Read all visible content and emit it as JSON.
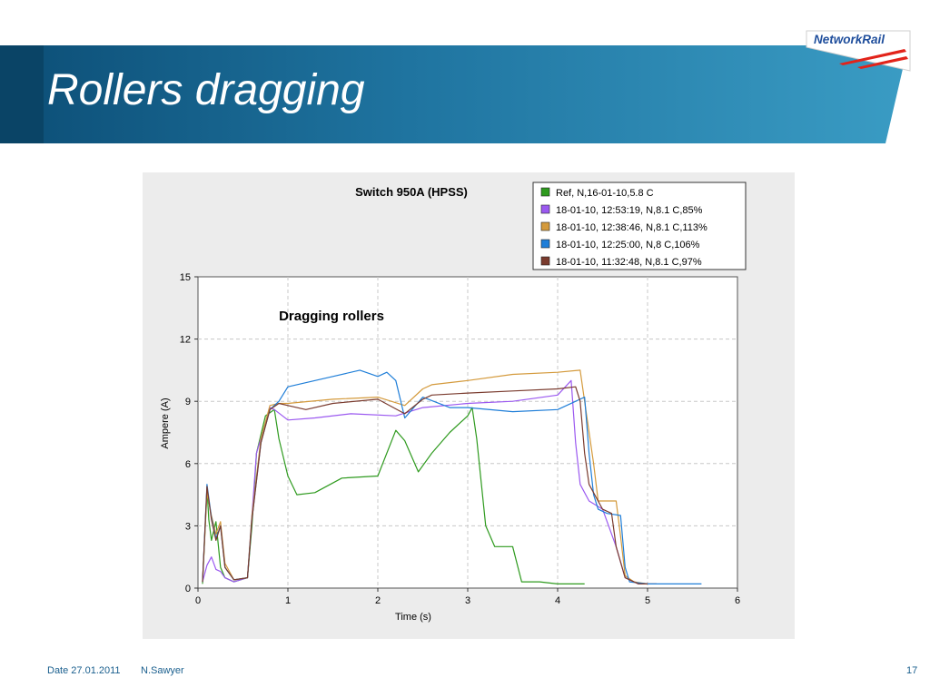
{
  "slide": {
    "title": "Rollers dragging",
    "logo_text": "NetworkRail",
    "footer": {
      "date": "Date 27.01.2011",
      "author": "N.Sawyer",
      "page": "17"
    }
  },
  "colors": {
    "banner_dark": "#0a4466",
    "banner_light": "#3a9cc4",
    "logo_red": "#e2231a",
    "logo_blue": "#1f4e9c"
  },
  "chart_data": {
    "type": "line",
    "title": "Switch 950A (HPSS)",
    "annotation": "Dragging rollers",
    "xlabel": "Time (s)",
    "ylabel": "Ampere (A)",
    "xlim": [
      0,
      6
    ],
    "ylim": [
      0,
      15
    ],
    "xticks": [
      0,
      1,
      2,
      3,
      4,
      5,
      6
    ],
    "yticks": [
      0,
      3,
      6,
      9,
      12,
      15
    ],
    "grid": true,
    "legend_position": "top-right",
    "series": [
      {
        "name": "Ref, N,16-01-10,5.8 C",
        "color": "#2e9a1e",
        "x": [
          0.05,
          0.1,
          0.12,
          0.15,
          0.2,
          0.25,
          0.3,
          0.4,
          0.55,
          0.6,
          0.65,
          0.75,
          0.85,
          0.9,
          1.0,
          1.1,
          1.3,
          1.6,
          2.0,
          2.2,
          2.3,
          2.45,
          2.6,
          2.8,
          3.0,
          3.05,
          3.1,
          3.2,
          3.3,
          3.5,
          3.6,
          3.8,
          4.0,
          4.3
        ],
        "y": [
          0.2,
          4.8,
          3.3,
          2.3,
          3.2,
          1.0,
          0.5,
          0.3,
          0.5,
          3.0,
          6.5,
          8.3,
          8.6,
          7.2,
          5.4,
          4.5,
          4.6,
          5.3,
          5.4,
          7.6,
          7.1,
          5.6,
          6.5,
          7.5,
          8.3,
          8.7,
          7.2,
          3.0,
          2.0,
          2.0,
          0.3,
          0.3,
          0.2,
          0.2
        ]
      },
      {
        "name": "18-01-10, 12:53:19, N,8.1 C,85%",
        "color": "#9b59f0",
        "x": [
          0.05,
          0.1,
          0.15,
          0.2,
          0.25,
          0.3,
          0.4,
          0.55,
          0.6,
          0.65,
          0.8,
          0.85,
          1.0,
          1.3,
          1.7,
          2.2,
          2.5,
          3.0,
          3.5,
          4.0,
          4.15,
          4.2,
          4.25,
          4.35,
          4.5,
          4.65,
          4.75,
          4.9,
          5.0,
          5.1
        ],
        "y": [
          0.3,
          1.1,
          1.5,
          0.9,
          0.8,
          0.5,
          0.3,
          0.5,
          3.5,
          6.5,
          8.7,
          8.6,
          8.1,
          8.2,
          8.4,
          8.3,
          8.7,
          8.9,
          9.0,
          9.3,
          10.0,
          7.0,
          5.0,
          4.2,
          3.8,
          2.0,
          0.5,
          0.2,
          0.2,
          0.2
        ]
      },
      {
        "name": "18-01-10, 12:38:46, N,8.1 C,113%",
        "color": "#d49a3c",
        "x": [
          0.05,
          0.1,
          0.15,
          0.2,
          0.25,
          0.3,
          0.4,
          0.55,
          0.6,
          0.7,
          0.8,
          0.9,
          1.0,
          1.5,
          2.0,
          2.3,
          2.5,
          2.6,
          3.0,
          3.5,
          4.0,
          4.25,
          4.3,
          4.4,
          4.45,
          4.55,
          4.65,
          4.7,
          4.75,
          4.85,
          5.0,
          5.1
        ],
        "y": [
          0.3,
          4.6,
          3.5,
          2.6,
          3.2,
          1.2,
          0.4,
          0.5,
          3.5,
          7.2,
          8.8,
          8.9,
          8.9,
          9.1,
          9.2,
          8.8,
          9.6,
          9.8,
          10.0,
          10.3,
          10.4,
          10.5,
          9.0,
          6.0,
          4.2,
          4.2,
          4.2,
          2.5,
          0.6,
          0.3,
          0.2,
          0.2
        ]
      },
      {
        "name": "18-01-10, 12:25:00, N,8 C,106%",
        "color": "#1f7ed8",
        "x": [
          0.05,
          0.1,
          0.15,
          0.2,
          0.25,
          0.3,
          0.4,
          0.55,
          0.6,
          0.7,
          0.8,
          0.9,
          1.0,
          1.5,
          1.8,
          2.0,
          2.1,
          2.2,
          2.3,
          2.5,
          2.8,
          3.0,
          3.5,
          4.0,
          4.2,
          4.3,
          4.35,
          4.4,
          4.45,
          4.55,
          4.7,
          4.75,
          4.8,
          5.0,
          5.6
        ],
        "y": [
          0.3,
          5.0,
          3.4,
          2.4,
          3.0,
          1.0,
          0.4,
          0.5,
          3.3,
          7.0,
          8.6,
          9.0,
          9.7,
          10.2,
          10.5,
          10.2,
          10.4,
          10.0,
          8.2,
          9.2,
          8.7,
          8.7,
          8.5,
          8.6,
          9.0,
          9.2,
          6.5,
          4.5,
          3.8,
          3.6,
          3.5,
          1.0,
          0.3,
          0.2,
          0.2
        ]
      },
      {
        "name": "18-01-10, 11:32:48, N,8.1 C,97%",
        "color": "#7a3b2e",
        "x": [
          0.05,
          0.1,
          0.15,
          0.2,
          0.25,
          0.3,
          0.4,
          0.55,
          0.6,
          0.7,
          0.8,
          0.9,
          1.0,
          1.2,
          1.5,
          2.0,
          2.3,
          2.5,
          2.6,
          3.0,
          3.5,
          4.0,
          4.2,
          4.25,
          4.3,
          4.35,
          4.5,
          4.6,
          4.65,
          4.75,
          4.9,
          5.0
        ],
        "y": [
          0.3,
          4.9,
          3.3,
          2.3,
          3.0,
          1.0,
          0.4,
          0.5,
          3.3,
          7.0,
          8.6,
          8.9,
          8.8,
          8.6,
          8.9,
          9.1,
          8.4,
          9.1,
          9.3,
          9.4,
          9.5,
          9.6,
          9.7,
          9.0,
          6.5,
          5.0,
          3.8,
          3.6,
          2.0,
          0.5,
          0.2,
          0.2
        ]
      }
    ]
  }
}
